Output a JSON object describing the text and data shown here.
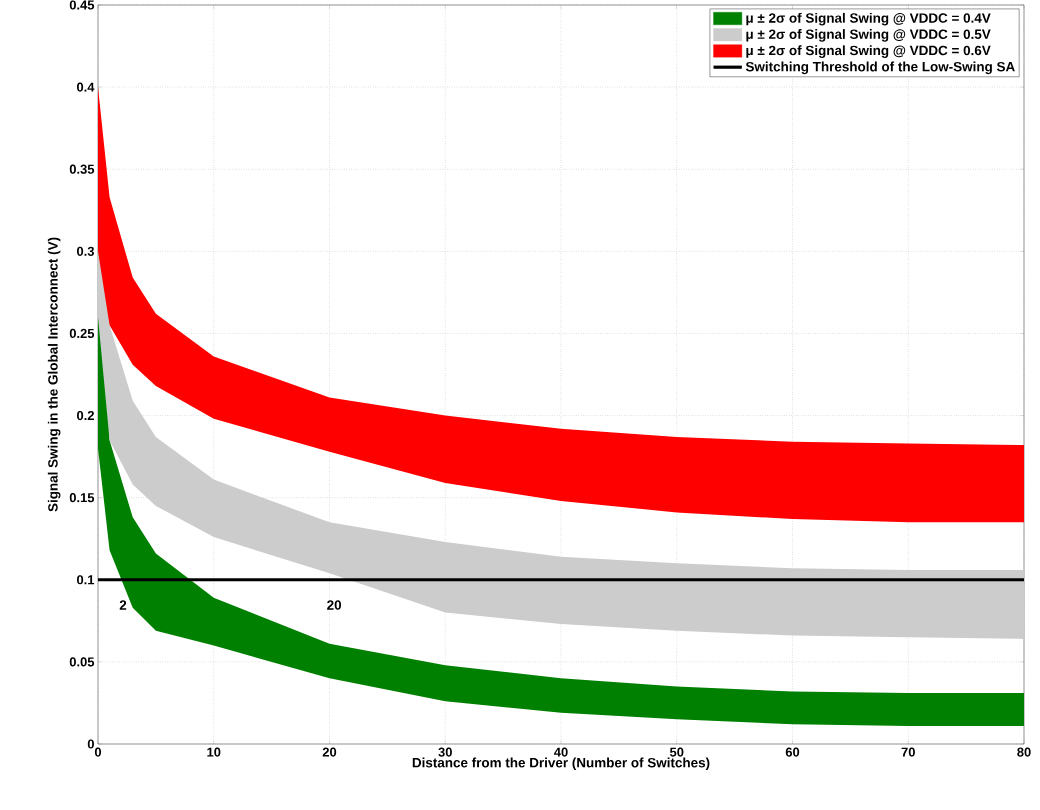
{
  "chart_data": {
    "type": "area",
    "xlabel": "Distance from the Driver (Number of Switches)",
    "ylabel": "Signal Swing in the Global Interconnect (V)",
    "x": [
      0,
      1,
      3,
      5,
      10,
      20,
      30,
      40,
      50,
      60,
      70,
      80
    ],
    "series": [
      {
        "name": "μ ± 2σ of Signal Swing @ VDDC = 0.4V",
        "color": "#008000",
        "values": [
          null,
          null,
          null,
          null,
          null,
          null,
          null,
          null,
          null,
          null,
          null,
          null
        ],
        "lower": [
          0.18,
          0.118,
          0.083,
          0.069,
          0.06,
          0.04,
          0.026,
          0.019,
          0.015,
          0.012,
          0.011,
          0.011
        ],
        "upper": [
          0.34,
          0.185,
          0.138,
          0.116,
          0.089,
          0.061,
          0.048,
          0.04,
          0.035,
          0.032,
          0.031,
          0.031
        ]
      },
      {
        "name": "μ ± 2σ of Signal Swing @ VDDC = 0.5V",
        "color": "#cccccc",
        "values": [
          null,
          null,
          null,
          null,
          null,
          null,
          null,
          null,
          null,
          null,
          null,
          null
        ],
        "lower": [
          0.26,
          0.185,
          0.158,
          0.145,
          0.126,
          0.104,
          0.08,
          0.073,
          0.069,
          0.066,
          0.065,
          0.064
        ],
        "upper": [
          0.37,
          0.255,
          0.209,
          0.187,
          0.161,
          0.135,
          0.123,
          0.114,
          0.11,
          0.107,
          0.106,
          0.106
        ]
      },
      {
        "name": "μ ± 2σ of Signal Swing @ VDDC = 0.6V",
        "color": "#ff0000",
        "values": [
          null,
          null,
          null,
          null,
          null,
          null,
          null,
          null,
          null,
          null,
          null,
          null
        ],
        "lower": [
          0.3,
          0.255,
          0.231,
          0.218,
          0.198,
          0.178,
          0.159,
          0.148,
          0.141,
          0.137,
          0.135,
          0.135
        ],
        "upper": [
          0.4,
          0.333,
          0.284,
          0.262,
          0.236,
          0.211,
          0.2,
          0.192,
          0.187,
          0.184,
          0.183,
          0.182
        ]
      }
    ],
    "ref_lines": [
      {
        "axis": "y",
        "value": 0.1,
        "label": "Switching Threshold of the Low-Swing SA",
        "color": "#000000"
      }
    ],
    "annotations": [
      "2",
      "20"
    ],
    "xlim": [
      0,
      80
    ],
    "ylim": [
      0,
      0.45
    ],
    "xticks": [
      0,
      10,
      20,
      30,
      40,
      50,
      60,
      70,
      80
    ],
    "yticks": [
      0,
      0.05,
      0.1,
      0.15,
      0.2,
      0.25,
      0.3,
      0.35,
      0.4,
      0.45
    ],
    "grid": true,
    "legend": "top right"
  }
}
